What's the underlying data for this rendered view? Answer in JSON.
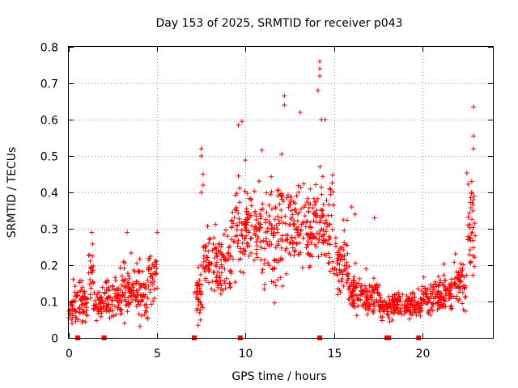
{
  "chart_data": {
    "type": "scatter",
    "title": "Day 153 of 2025, SRMTID for receiver p043",
    "xlabel": "GPS time / hours",
    "ylabel": "SRMTID / TECUs",
    "xlim": [
      0,
      24
    ],
    "ylim": [
      0,
      0.8
    ],
    "xticks": [
      0,
      5,
      10,
      15,
      20
    ],
    "yticks": [
      0,
      0.1,
      0.2,
      0.3,
      0.4,
      0.5,
      0.6,
      0.7,
      0.8
    ],
    "xtick_labels": [
      "0",
      "5",
      "10",
      "15",
      "20"
    ],
    "ytick_labels": [
      "0",
      "0.1",
      "0.2",
      "0.3",
      "0.4",
      "0.5",
      "0.6",
      "0.7",
      "0.8"
    ],
    "grid": true,
    "marker": "+",
    "marker_color": "#ff0000",
    "segments": [
      {
        "x0": 0.0,
        "x1": 0.5,
        "base": 0.08,
        "spread": 0.04
      },
      {
        "x0": 0.5,
        "x1": 1.1,
        "base": 0.09,
        "spread": 0.05
      },
      {
        "x0": 1.1,
        "x1": 1.4,
        "base": 0.17,
        "spread": 0.07
      },
      {
        "x0": 1.4,
        "x1": 2.0,
        "base": 0.09,
        "spread": 0.04
      },
      {
        "x0": 2.0,
        "x1": 3.0,
        "base": 0.11,
        "spread": 0.05
      },
      {
        "x0": 3.0,
        "x1": 3.8,
        "base": 0.13,
        "spread": 0.06
      },
      {
        "x0": 3.8,
        "x1": 4.5,
        "base": 0.12,
        "spread": 0.06
      },
      {
        "x0": 4.5,
        "x1": 5.0,
        "base": 0.17,
        "spread": 0.06
      },
      {
        "x0": 7.1,
        "x1": 7.6,
        "base": 0.12,
        "spread": 0.06
      },
      {
        "x0": 7.6,
        "x1": 8.5,
        "base": 0.2,
        "spread": 0.07
      },
      {
        "x0": 8.5,
        "x1": 9.2,
        "base": 0.2,
        "spread": 0.08
      },
      {
        "x0": 9.2,
        "x1": 10.0,
        "base": 0.3,
        "spread": 0.1
      },
      {
        "x0": 10.0,
        "x1": 11.0,
        "base": 0.3,
        "spread": 0.1
      },
      {
        "x0": 11.0,
        "x1": 12.0,
        "base": 0.28,
        "spread": 0.12
      },
      {
        "x0": 12.0,
        "x1": 13.0,
        "base": 0.3,
        "spread": 0.11
      },
      {
        "x0": 13.0,
        "x1": 14.0,
        "base": 0.3,
        "spread": 0.1
      },
      {
        "x0": 14.0,
        "x1": 15.0,
        "base": 0.3,
        "spread": 0.11
      },
      {
        "x0": 15.0,
        "x1": 15.8,
        "base": 0.2,
        "spread": 0.07
      },
      {
        "x0": 15.8,
        "x1": 16.8,
        "base": 0.12,
        "spread": 0.04
      },
      {
        "x0": 16.8,
        "x1": 17.6,
        "base": 0.11,
        "spread": 0.04
      },
      {
        "x0": 17.6,
        "x1": 18.4,
        "base": 0.08,
        "spread": 0.03
      },
      {
        "x0": 18.4,
        "x1": 19.3,
        "base": 0.09,
        "spread": 0.03
      },
      {
        "x0": 19.3,
        "x1": 20.0,
        "base": 0.09,
        "spread": 0.03
      },
      {
        "x0": 20.0,
        "x1": 21.0,
        "base": 0.11,
        "spread": 0.04
      },
      {
        "x0": 21.0,
        "x1": 21.8,
        "base": 0.12,
        "spread": 0.04
      },
      {
        "x0": 21.8,
        "x1": 22.5,
        "base": 0.15,
        "spread": 0.06
      },
      {
        "x0": 22.5,
        "x1": 23.0,
        "base": 0.3,
        "spread": 0.12
      }
    ],
    "notable_points": [
      {
        "x": 14.2,
        "y": 0.76
      },
      {
        "x": 14.2,
        "y": 0.74
      },
      {
        "x": 14.2,
        "y": 0.72
      },
      {
        "x": 14.1,
        "y": 0.68
      },
      {
        "x": 12.2,
        "y": 0.665
      },
      {
        "x": 12.2,
        "y": 0.64
      },
      {
        "x": 13.1,
        "y": 0.62
      },
      {
        "x": 14.5,
        "y": 0.6
      },
      {
        "x": 14.3,
        "y": 0.6
      },
      {
        "x": 9.8,
        "y": 0.595
      },
      {
        "x": 9.6,
        "y": 0.585
      },
      {
        "x": 22.9,
        "y": 0.635
      },
      {
        "x": 22.9,
        "y": 0.555
      },
      {
        "x": 22.9,
        "y": 0.52
      },
      {
        "x": 22.8,
        "y": 0.43
      },
      {
        "x": 22.8,
        "y": 0.4
      },
      {
        "x": 22.9,
        "y": 0.38
      },
      {
        "x": 7.5,
        "y": 0.52
      },
      {
        "x": 7.5,
        "y": 0.5
      },
      {
        "x": 7.6,
        "y": 0.45
      },
      {
        "x": 7.6,
        "y": 0.42
      },
      {
        "x": 7.5,
        "y": 0.4
      },
      {
        "x": 3.3,
        "y": 0.29
      },
      {
        "x": 5.0,
        "y": 0.29
      },
      {
        "x": 1.3,
        "y": 0.29
      },
      {
        "x": 16.0,
        "y": 0.36
      },
      {
        "x": 16.2,
        "y": 0.34
      },
      {
        "x": 17.3,
        "y": 0.33
      }
    ],
    "gap_markers": [
      0.5,
      2.0,
      7.1,
      9.7,
      14.2,
      18.0,
      18.1,
      19.8
    ]
  }
}
